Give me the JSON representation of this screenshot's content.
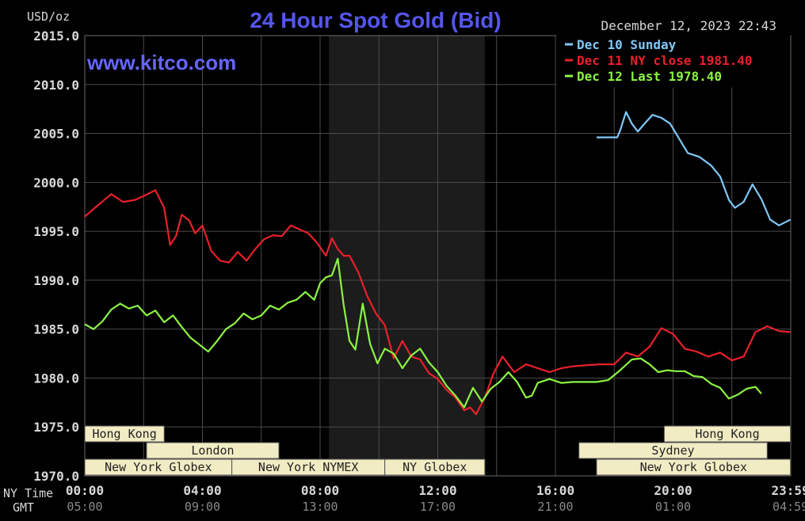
{
  "chart_data": {
    "type": "line",
    "title": "24 Hour Spot Gold (Bid)",
    "ylabel": "USD/oz",
    "watermark": "www.kitco.com",
    "timestamp": "December 12, 2023 22:43",
    "ylim": [
      1970,
      2015
    ],
    "y_ticks": [
      "2015.0",
      "2010.0",
      "2005.0",
      "2000.0",
      "1995.0",
      "1990.0",
      "1985.0",
      "1980.0",
      "1975.0",
      "1970.0"
    ],
    "x_range_hours": [
      0,
      24
    ],
    "x_ticks_ny": [
      "00:00",
      "04:00",
      "08:00",
      "12:00",
      "16:00",
      "20:00",
      "23:59"
    ],
    "x_ticks_gmt": [
      "05:00",
      "09:00",
      "13:00",
      "17:00",
      "21:00",
      "01:00",
      "04:59"
    ],
    "x_axis_row_labels": [
      "NY Time",
      "GMT"
    ],
    "grid": true,
    "shaded_band_hours": [
      8.3,
      13.6
    ],
    "legend_position": "top-right",
    "series": [
      {
        "name": "Dec 10 Sunday",
        "legend_label": "Dec 10 Sunday",
        "color": "#7fc8f8",
        "x": [
          17.4,
          18.1,
          18.2,
          18.4,
          18.6,
          18.8,
          19.0,
          19.3,
          19.6,
          19.9,
          20.1,
          20.5,
          20.9,
          21.3,
          21.6,
          21.9,
          22.1,
          22.4,
          22.7,
          23.0,
          23.3,
          23.6,
          23.99
        ],
        "y": [
          2004.6,
          2004.6,
          2005.3,
          2007.2,
          2006.0,
          2005.2,
          2005.9,
          2006.9,
          2006.6,
          2006.0,
          2005.0,
          2003.0,
          2002.6,
          2001.7,
          2000.6,
          1998.2,
          1997.4,
          1998.0,
          1999.8,
          1998.3,
          1996.2,
          1995.6,
          1996.2
        ]
      },
      {
        "name": "Dec 11 NY close 1981.40",
        "legend_label": "Dec 11 NY close 1981.40",
        "color": "#e8202a",
        "x": [
          0.0,
          0.5,
          0.9,
          1.3,
          1.7,
          2.0,
          2.4,
          2.7,
          2.9,
          3.1,
          3.3,
          3.55,
          3.75,
          4.0,
          4.3,
          4.6,
          4.9,
          5.2,
          5.5,
          5.8,
          6.1,
          6.4,
          6.7,
          7.0,
          7.3,
          7.6,
          7.9,
          8.2,
          8.4,
          8.6,
          8.8,
          9.0,
          9.3,
          9.6,
          9.9,
          10.2,
          10.5,
          10.8,
          11.1,
          11.4,
          11.7,
          12.0,
          12.3,
          12.6,
          12.9,
          13.1,
          13.3,
          13.6,
          13.9,
          14.2,
          14.6,
          15.0,
          15.4,
          15.8,
          16.2,
          16.6,
          17.0,
          17.5,
          18.0,
          18.4,
          18.8,
          19.2,
          19.6,
          20.0,
          20.4,
          20.8,
          21.2,
          21.6,
          22.0,
          22.4,
          22.8,
          23.2,
          23.6,
          23.99
        ],
        "y": [
          1996.5,
          1997.8,
          1998.8,
          1998.0,
          1998.2,
          1998.6,
          1999.2,
          1997.4,
          1993.6,
          1994.5,
          1996.7,
          1996.1,
          1994.8,
          1995.6,
          1993.0,
          1992.0,
          1991.8,
          1992.9,
          1992.0,
          1993.2,
          1994.2,
          1994.6,
          1994.5,
          1995.6,
          1995.2,
          1994.8,
          1993.8,
          1992.5,
          1994.3,
          1993.2,
          1992.5,
          1992.5,
          1990.8,
          1988.4,
          1986.6,
          1985.4,
          1982.0,
          1983.8,
          1982.2,
          1981.9,
          1980.5,
          1979.9,
          1978.8,
          1978.0,
          1976.7,
          1977.0,
          1976.3,
          1978.0,
          1980.5,
          1982.2,
          1980.6,
          1981.4,
          1981.0,
          1980.6,
          1981.0,
          1981.2,
          1981.3,
          1981.4,
          1981.4,
          1982.6,
          1982.2,
          1983.2,
          1985.1,
          1984.5,
          1983.0,
          1982.7,
          1982.2,
          1982.6,
          1981.8,
          1982.2,
          1984.7,
          1985.3,
          1984.8,
          1984.7
        ]
      },
      {
        "name": "Dec 12 Last 1978.40",
        "legend_label": "Dec 12 Last 1978.40",
        "color": "#8cf442",
        "x": [
          0.0,
          0.3,
          0.6,
          0.9,
          1.2,
          1.5,
          1.8,
          2.1,
          2.4,
          2.7,
          3.0,
          3.3,
          3.6,
          3.9,
          4.2,
          4.5,
          4.8,
          5.1,
          5.4,
          5.7,
          6.0,
          6.3,
          6.6,
          6.9,
          7.2,
          7.5,
          7.8,
          8.0,
          8.2,
          8.4,
          8.6,
          8.8,
          9.0,
          9.2,
          9.45,
          9.7,
          9.95,
          10.2,
          10.5,
          10.8,
          11.1,
          11.4,
          11.7,
          12.0,
          12.3,
          12.6,
          12.9,
          13.2,
          13.5,
          13.8,
          14.1,
          14.4,
          14.7,
          15.0,
          15.2,
          15.4,
          15.8,
          16.2,
          16.6,
          17.0,
          17.4,
          17.8,
          18.2,
          18.6,
          18.9,
          19.2,
          19.5,
          19.8,
          20.1,
          20.4,
          20.7,
          21.0,
          21.3,
          21.6,
          21.9,
          22.2,
          22.5,
          22.8,
          23.0
        ],
        "y": [
          1985.5,
          1985.0,
          1985.8,
          1987.0,
          1987.6,
          1987.1,
          1987.4,
          1986.4,
          1986.9,
          1985.7,
          1986.4,
          1985.2,
          1984.1,
          1983.4,
          1982.7,
          1983.8,
          1985.0,
          1985.6,
          1986.6,
          1986.0,
          1986.4,
          1987.4,
          1987.0,
          1987.7,
          1988.0,
          1988.8,
          1988.0,
          1989.7,
          1990.3,
          1990.5,
          1992.2,
          1987.5,
          1983.8,
          1982.9,
          1987.6,
          1983.5,
          1981.5,
          1983.0,
          1982.5,
          1981.0,
          1982.3,
          1983.0,
          1981.6,
          1980.6,
          1979.2,
          1978.2,
          1977.0,
          1979.0,
          1977.6,
          1978.9,
          1979.6,
          1980.6,
          1979.6,
          1978.0,
          1978.2,
          1979.5,
          1979.9,
          1979.5,
          1979.6,
          1979.6,
          1979.6,
          1979.8,
          1980.8,
          1981.9,
          1982.0,
          1981.4,
          1980.6,
          1980.8,
          1980.7,
          1980.7,
          1980.2,
          1980.1,
          1979.4,
          1979.0,
          1977.9,
          1978.3,
          1978.9,
          1979.1,
          1978.4
        ]
      }
    ],
    "session_bands": [
      {
        "label": "Hong Kong",
        "row": 0,
        "start": 0.0,
        "end": 2.7
      },
      {
        "label": "Hong Kong",
        "row": 0,
        "start": 19.7,
        "end": 23.99
      },
      {
        "label": "London",
        "row": 1,
        "start": 2.1,
        "end": 6.6
      },
      {
        "label": "Sydney",
        "row": 1,
        "start": 16.8,
        "end": 23.2
      },
      {
        "label": "New York Globex",
        "row": 2,
        "start": 0.0,
        "end": 5.0
      },
      {
        "label": "New York NYMEX",
        "row": 2,
        "start": 5.0,
        "end": 10.2
      },
      {
        "label": "NY Globex",
        "row": 2,
        "start": 10.2,
        "end": 13.6
      },
      {
        "label": "New York Globex",
        "row": 2,
        "start": 17.4,
        "end": 23.99
      }
    ],
    "background_color": "#000000",
    "grid_color": "#4a4a4a",
    "band_shade_color": "#1c1c1c",
    "title_color": "#5555ee",
    "watermark_color": "#6666ff",
    "text_color": "#d8d8d8",
    "band_fill_color": "#f2ecc4",
    "band_text_color": "#222222"
  }
}
